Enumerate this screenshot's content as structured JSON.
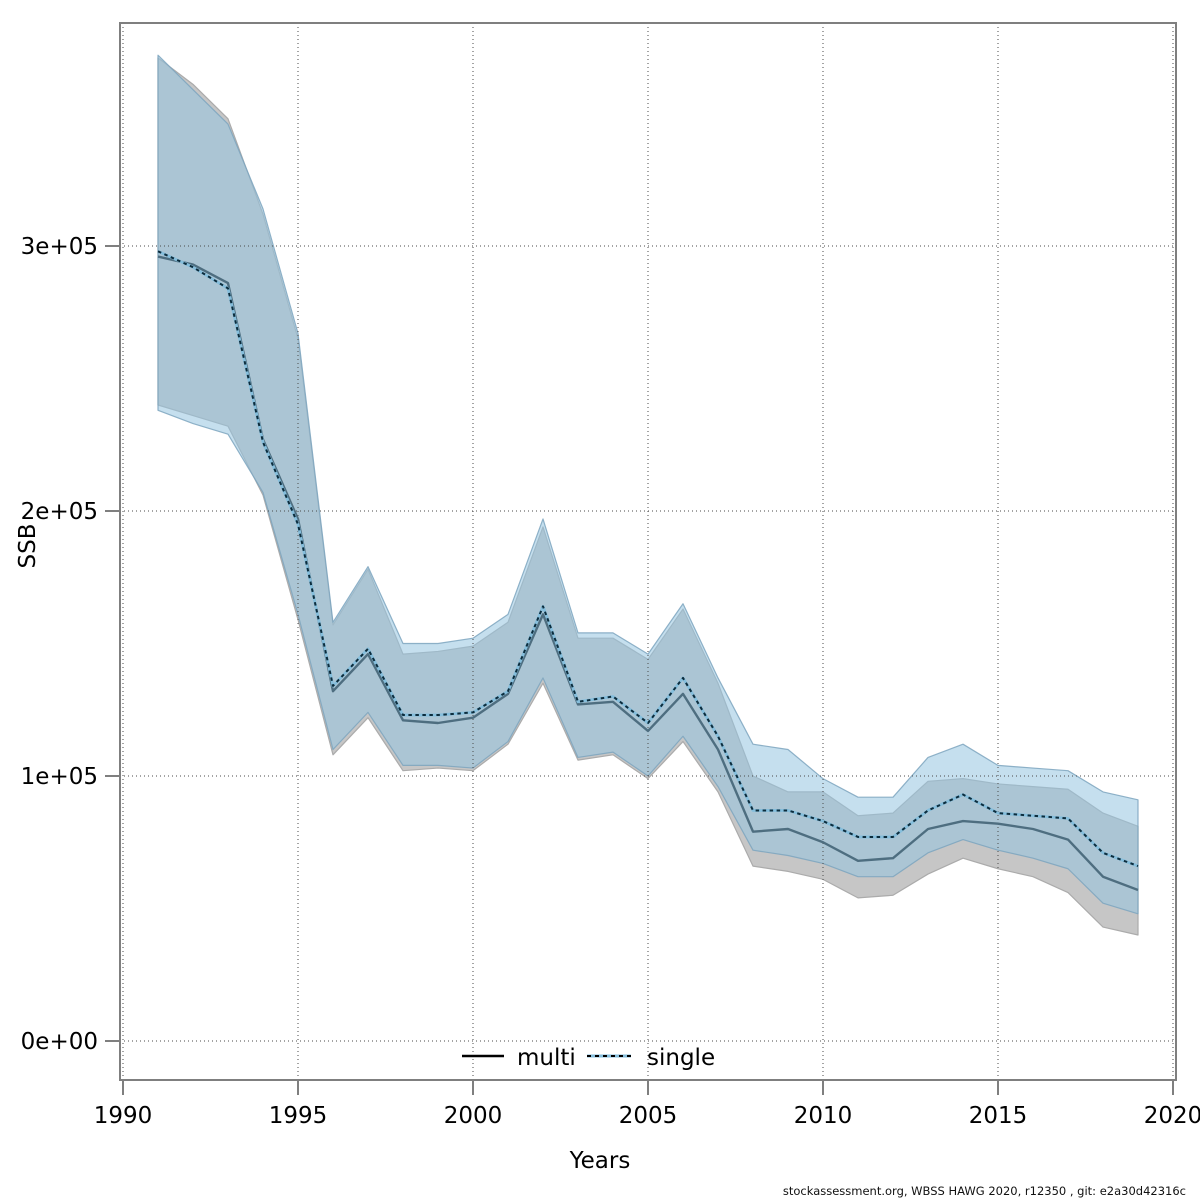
{
  "figure": {
    "xlabel": "Years",
    "ylabel": "SSB",
    "footer": "stockassessment.org, WBSS HAWG 2020, r12350 , git: e2a30d42316c"
  },
  "legend": {
    "items": [
      {
        "label": "multi",
        "line_style": "solid"
      },
      {
        "label": "single",
        "line_style": "dashed"
      }
    ]
  },
  "colors": {
    "multi_line": "#4e6e80",
    "multi_band": "#c6c6c6",
    "multi_band_edge": "#ababab",
    "single_line_dash": "#0c2c3c",
    "single_line_base": "#85bedc",
    "single_band_fill": "rgba(150,197,224,0.55)",
    "single_band_edge": "rgba(125,165,190,0.85)",
    "legend_multi_line": "#000000",
    "grid": "#4a4a4a",
    "frame": "#7f7f7f",
    "tick_text": "#000000"
  },
  "chart_data": {
    "type": "line",
    "title": "",
    "xlabel": "Years",
    "ylabel": "SSB",
    "grid": true,
    "legend_position": "bottom",
    "xlim": [
      1990,
      2020
    ],
    "ylim": [
      0,
      390000
    ],
    "x_ticks": [
      {
        "value": 1990,
        "label": "1990"
      },
      {
        "value": 1995,
        "label": "1995"
      },
      {
        "value": 2000,
        "label": "2000"
      },
      {
        "value": 2005,
        "label": "2005"
      },
      {
        "value": 2010,
        "label": "2010"
      },
      {
        "value": 2015,
        "label": "2015"
      },
      {
        "value": 2020,
        "label": "2020"
      }
    ],
    "y_ticks": [
      {
        "value": 0,
        "label": "0e+00"
      },
      {
        "value": 100000,
        "label": "1e+05"
      },
      {
        "value": 200000,
        "label": "2e+05"
      },
      {
        "value": 300000,
        "label": "3e+05"
      }
    ],
    "x": [
      1991,
      1992,
      1993,
      1994,
      1995,
      1996,
      1997,
      1998,
      1999,
      2000,
      2001,
      2002,
      2003,
      2004,
      2005,
      2006,
      2007,
      2008,
      2009,
      2010,
      2011,
      2012,
      2013,
      2014,
      2015,
      2016,
      2017,
      2018,
      2019
    ],
    "series": [
      {
        "name": "multi",
        "values": [
          296000,
          293000,
          286000,
          227000,
          197000,
          132000,
          146000,
          121000,
          120000,
          122000,
          131000,
          161000,
          127000,
          128000,
          117000,
          131000,
          110000,
          79000,
          80000,
          75000,
          68000,
          69000,
          80000,
          83000,
          82000,
          80000,
          76000,
          62000,
          57000
        ],
        "upper": [
          371000,
          361000,
          348000,
          312000,
          265000,
          157000,
          178000,
          146000,
          147000,
          149000,
          158000,
          194000,
          152000,
          152000,
          144000,
          163000,
          135000,
          100000,
          94000,
          94000,
          85000,
          86000,
          98000,
          99000,
          97000,
          96000,
          95000,
          86000,
          81000
        ],
        "lower": [
          240000,
          236000,
          232000,
          206000,
          159000,
          108000,
          122000,
          102000,
          103000,
          102000,
          112000,
          135000,
          106000,
          108000,
          99000,
          113000,
          94000,
          66000,
          64000,
          61000,
          54000,
          55000,
          63000,
          69000,
          65000,
          62000,
          56000,
          43000,
          40000
        ]
      },
      {
        "name": "single",
        "values": [
          298000,
          292000,
          284000,
          226000,
          195000,
          134000,
          148000,
          123000,
          123000,
          124000,
          132000,
          164000,
          128000,
          130000,
          120000,
          137000,
          115000,
          87000,
          87000,
          83000,
          77000,
          77000,
          87000,
          93000,
          86000,
          85000,
          84000,
          71000,
          66000
        ],
        "upper": [
          372000,
          359000,
          346000,
          314000,
          267000,
          158000,
          179000,
          150000,
          150000,
          152000,
          161000,
          197000,
          154000,
          154000,
          146000,
          165000,
          137000,
          112000,
          110000,
          99000,
          92000,
          92000,
          107000,
          112000,
          104000,
          103000,
          102000,
          94000,
          91000
        ],
        "lower": [
          238000,
          233000,
          229000,
          207000,
          161000,
          110000,
          124000,
          104000,
          104000,
          103000,
          113000,
          137000,
          107000,
          109000,
          100000,
          115000,
          96000,
          72000,
          70000,
          67000,
          62000,
          62000,
          71000,
          76000,
          72000,
          69000,
          65000,
          52000,
          48000
        ]
      }
    ]
  }
}
